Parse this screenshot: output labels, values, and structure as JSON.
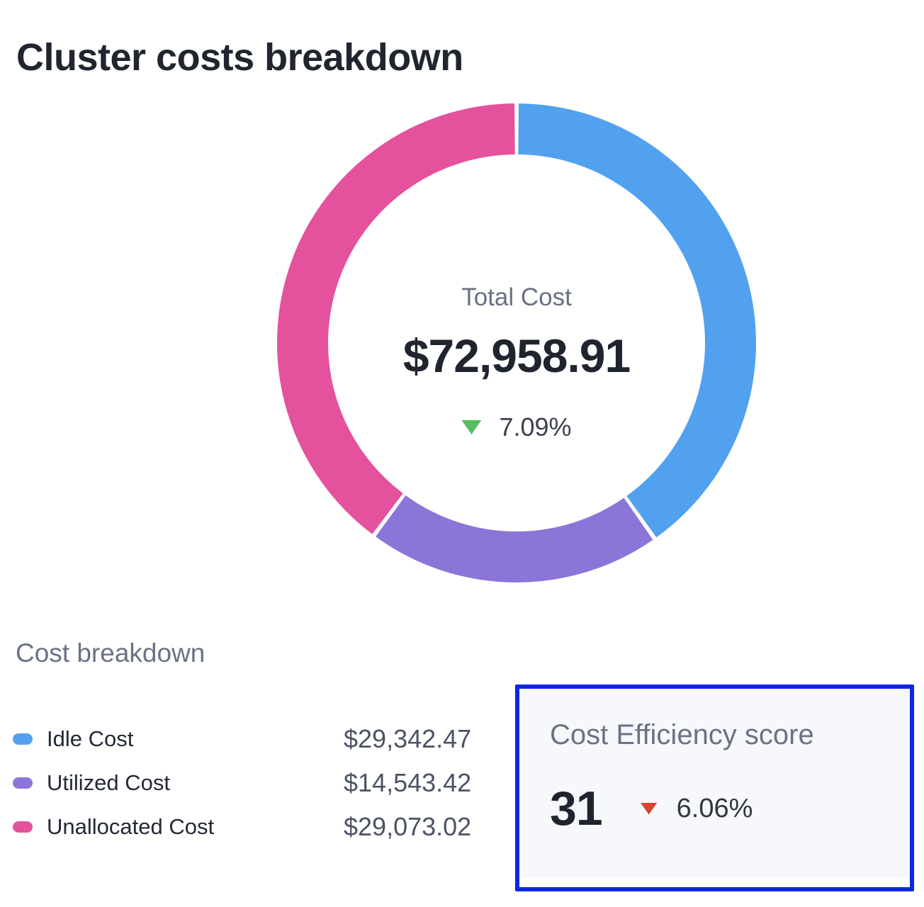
{
  "header": {
    "title": "Cluster costs breakdown"
  },
  "chart_data": {
    "type": "pie",
    "subtype": "donut",
    "title": "Cluster costs breakdown",
    "start_angle_deg": 0,
    "clockwise": true,
    "center": {
      "label": "Total Cost",
      "total": "$72,958.91",
      "delta": "7.09%",
      "delta_direction": "down",
      "delta_color": "#56be5e"
    },
    "series": [
      {
        "name": "Idle Cost",
        "value": 29342.47,
        "display": "$29,342.47",
        "color": "#52a1ef"
      },
      {
        "name": "Utilized Cost",
        "value": 14543.42,
        "display": "$14,543.42",
        "color": "#8b75d8"
      },
      {
        "name": "Unallocated Cost",
        "value": 29073.02,
        "display": "$29,073.02",
        "color": "#e4519c"
      }
    ],
    "legend_position": "bottom-left"
  },
  "breakdown": {
    "heading": "Cost breakdown"
  },
  "efficiency": {
    "title": "Cost Efficiency score",
    "score": "31",
    "delta": "6.06%",
    "delta_direction": "down",
    "delta_color": "#d9442f",
    "highlight_color": "#0e25e5",
    "card_background": "#f7f8fb"
  }
}
